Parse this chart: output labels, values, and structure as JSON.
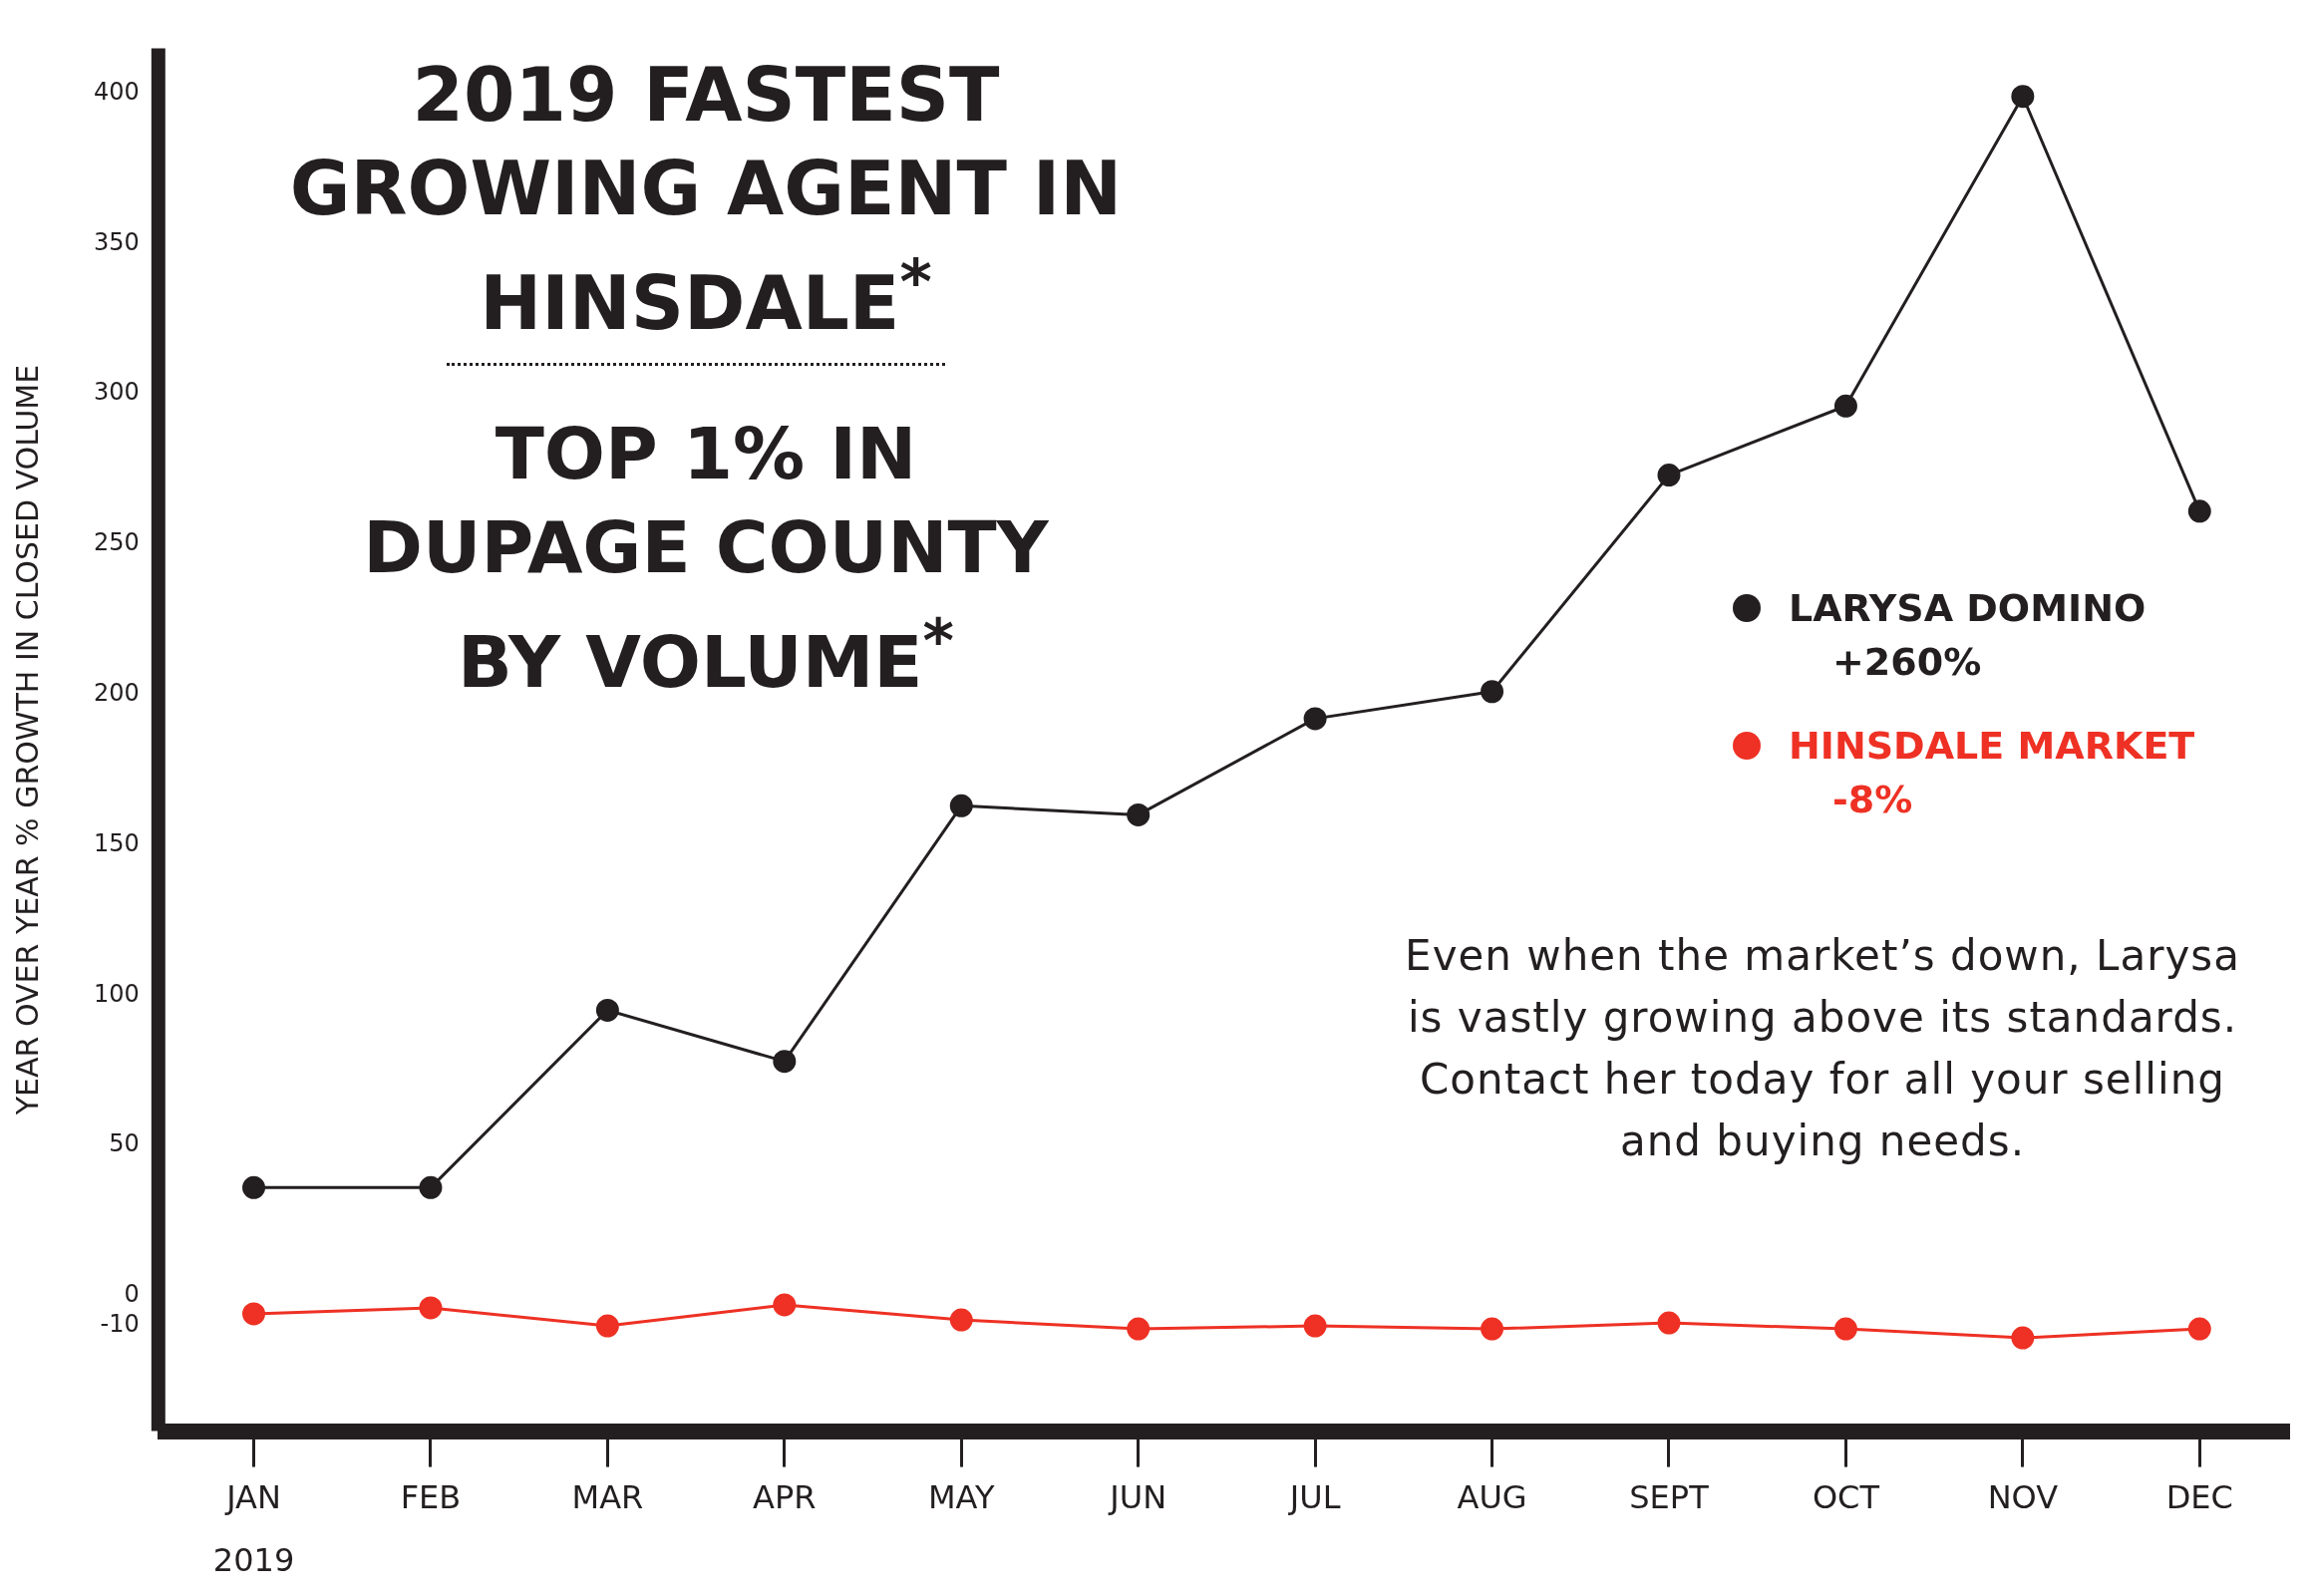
{
  "chart_data": {
    "type": "line",
    "title": "2019 FASTEST GROWING AGENT IN HINSDALE$^{*}$",
    "subtitle": "TOP 1% IN DUPAGE COUNTY BY VOLUME$^{*}$",
    "ylabel": "YEAR OVER YEAR % GROWTH IN CLOSED VOLUME",
    "xlabel": "2019",
    "categories": [
      "JAN",
      "FEB",
      "MAR",
      "APR",
      "MAY",
      "JUN",
      "JUL",
      "AUG",
      "SEPT",
      "OCT",
      "NOV",
      "DEC"
    ],
    "series": [
      {
        "name": "LARYSA DOMINO",
        "color": "#231f20",
        "values": [
          36,
          36,
          95,
          78,
          163,
          160,
          192,
          201,
          273,
          296,
          399,
          261
        ]
      },
      {
        "name": "HINSDALE MARKET",
        "color": "#ee3124",
        "values": [
          -6,
          -4,
          -10,
          -3,
          -8,
          -11,
          -10,
          -11,
          -9,
          -11,
          -14,
          -11
        ]
      }
    ],
    "ylim": [
      -45,
      415
    ],
    "yticks": [
      -10,
      0,
      50,
      100,
      150,
      200,
      250,
      300,
      350,
      400
    ],
    "marker": "circle",
    "line_style": "solid",
    "legend": "right",
    "annotations": [
      "+260%",
      "-8%",
      "Even when the market’s down, Larysa is vastly growing above its standards. Contact her today for all your selling and buying needs."
    ]
  }
}
